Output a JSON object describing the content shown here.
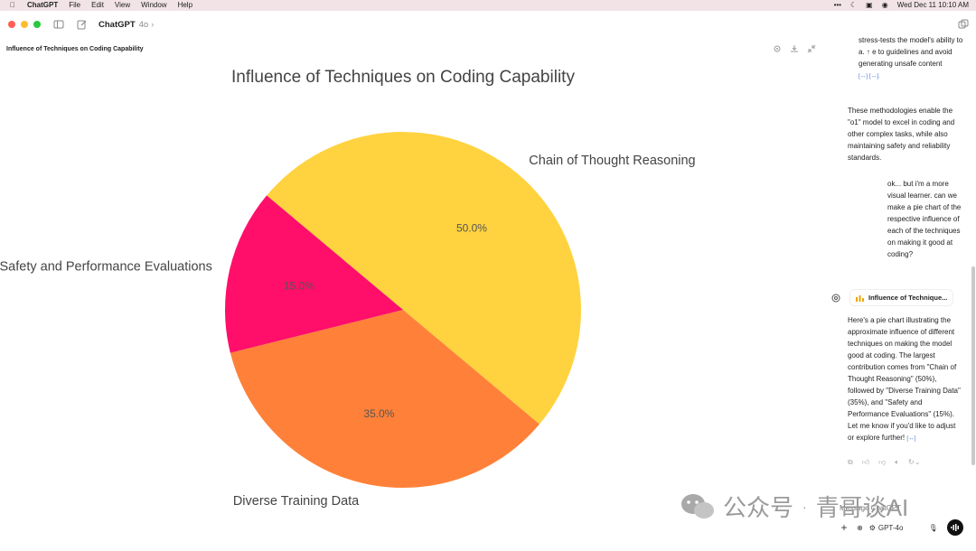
{
  "menubar": {
    "items": [
      "ChatGPT",
      "File",
      "Edit",
      "View",
      "Window",
      "Help"
    ],
    "datetime": "Wed Dec 11  10:10 AM"
  },
  "window": {
    "app_title": "ChatGPT",
    "model": "4o",
    "chevron": "›"
  },
  "canvas": {
    "title": "Influence of Techniques on Coding Capability"
  },
  "chart_data": {
    "type": "pie",
    "title": "Influence of Techniques on Coding Capability",
    "categories": [
      "Chain of Thought Reasoning",
      "Diverse Training Data",
      "Safety and Performance Evaluations"
    ],
    "values": [
      50.0,
      35.0,
      15.0
    ],
    "labels_pct": [
      "50.0%",
      "35.0%",
      "15.0%"
    ],
    "colors": [
      "#ffd23f",
      "#ff8139",
      "#ff0f6a"
    ]
  },
  "chat": {
    "p1": "stress-tests the model's ability to a. ↑ e to guidelines and avoid generating unsafe content",
    "p1_cite": "[↔] [↔].",
    "p2": "These methodologies enable the \"o1\" model to excel in coding and other complex tasks, while also maintaining safety and reliability standards.",
    "user_msg": "ok... but i'm a more visual learner. can we make a pie chart of the respective influence of each of the techniques on making it good at coding?",
    "chip_label": "Influence of Technique...",
    "p3": "Here's a pie chart illustrating the approximate influence of different techniques on making the model good at coding. The largest contribution comes from \"Chain of Thought Reasoning\" (50%), followed by \"Diverse Training Data\" (35%), and \"Safety and Performance Evaluations\" (15%). Let me know if you'd like to adjust or explore further!",
    "p3_cite": "[↔]"
  },
  "composer": {
    "placeholder": "Message ChatGPT",
    "model_label": "GPT-4o"
  },
  "watermark": {
    "text1": "公众号",
    "sep": "·",
    "text2": "青哥谈AI"
  }
}
